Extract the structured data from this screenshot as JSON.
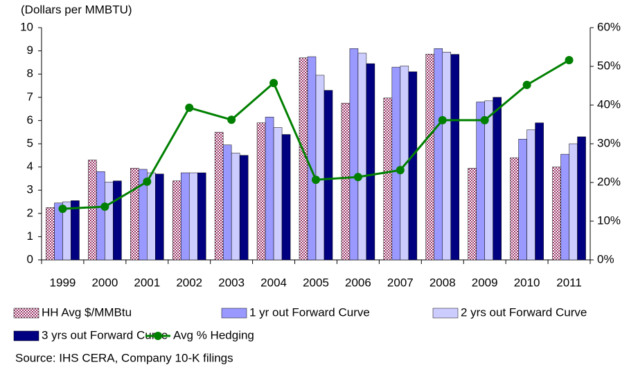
{
  "chart_data": {
    "type": "bar",
    "y_label": "(Dollars per MMBTU)",
    "categories": [
      "1999",
      "2000",
      "2001",
      "2002",
      "2003",
      "2004",
      "2005",
      "2006",
      "2007",
      "2008",
      "2009",
      "2010",
      "2011"
    ],
    "series": [
      {
        "name": "HH Avg $/MMBtu",
        "color": "#993366",
        "pattern": "checker",
        "values": [
          2.25,
          4.3,
          3.95,
          3.4,
          5.5,
          5.9,
          8.7,
          6.75,
          6.97,
          8.86,
          3.95,
          4.4,
          4.0
        ]
      },
      {
        "name": "1 yr out Forward Curve",
        "color": "#9999ff",
        "values": [
          2.45,
          3.8,
          3.9,
          3.75,
          4.95,
          6.15,
          8.75,
          9.1,
          8.3,
          9.1,
          6.8,
          5.2,
          4.55
        ]
      },
      {
        "name": "2 yrs out Forward Curve",
        "color": "#ccccff",
        "values": [
          2.5,
          3.35,
          3.75,
          3.75,
          4.6,
          5.7,
          7.95,
          8.9,
          8.35,
          8.95,
          6.85,
          5.6,
          5.0
        ]
      },
      {
        "name": "3 yrs out Forward Curve",
        "color": "#000080",
        "values": [
          2.55,
          3.4,
          3.7,
          3.75,
          4.5,
          5.4,
          7.3,
          8.45,
          8.1,
          8.85,
          7.0,
          5.9,
          5.3
        ]
      },
      {
        "name": "Avg % Hedging",
        "type": "line",
        "axis": "y2",
        "color": "#008000",
        "values": [
          13.2,
          13.75,
          20.2,
          39.3,
          36.2,
          45.7,
          20.7,
          21.4,
          23.2,
          36.1,
          36.1,
          45.2,
          51.6
        ]
      }
    ],
    "ylim": [
      0,
      10
    ],
    "yticks": [
      0,
      1,
      2,
      3,
      4,
      5,
      6,
      7,
      8,
      9,
      10
    ],
    "y2lim": [
      0,
      60
    ],
    "y2ticks": [
      {
        "value": 0,
        "label": "0%"
      },
      {
        "value": 10,
        "label": "10%"
      },
      {
        "value": 20,
        "label": "20%"
      },
      {
        "value": 30,
        "label": "30%"
      },
      {
        "value": 40,
        "label": "40%"
      },
      {
        "value": 50,
        "label": "50%"
      },
      {
        "value": 60,
        "label": "60%"
      }
    ],
    "grid": false,
    "source": "Source: IHS CERA, Company 10-K filings"
  }
}
